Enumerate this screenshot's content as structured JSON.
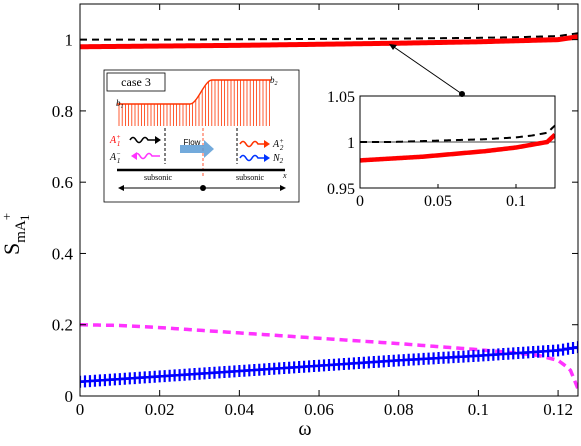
{
  "chart_data": {
    "type": "line",
    "xlabel": "ω",
    "ylabel": {
      "base": "S",
      "sub1": "mA",
      "sup": "+",
      "sub2": "1"
    },
    "xlim": [
      0,
      0.125
    ],
    "ylim": [
      0,
      1.1
    ],
    "xticks": [
      0,
      0.02,
      0.04,
      0.06,
      0.08,
      0.1,
      0.12
    ],
    "xtick_labels": [
      "0",
      "0.02",
      "0.04",
      "0.06",
      "0.08",
      "0.1",
      "0.12"
    ],
    "yticks": [
      0,
      0.2,
      0.4,
      0.6,
      0.8,
      1
    ],
    "ytick_labels": [
      "0",
      "0.2",
      "0.4",
      "0.6",
      "0.8",
      "1"
    ],
    "grid": false,
    "series": [
      {
        "style": "dashed",
        "color": "#000000",
        "x": [
          0,
          0.02,
          0.04,
          0.06,
          0.08,
          0.1,
          0.11,
          0.12,
          0.125
        ],
        "y": [
          1.0,
          1.0,
          1.001,
          1.002,
          1.003,
          1.005,
          1.007,
          1.01,
          1.018
        ]
      },
      {
        "style": "solid-thick",
        "color": "#ff0000",
        "x": [
          0,
          0.02,
          0.04,
          0.06,
          0.08,
          0.1,
          0.11,
          0.12,
          0.125
        ],
        "y": [
          0.98,
          0.982,
          0.984,
          0.987,
          0.99,
          0.994,
          0.997,
          1.0,
          1.008
        ]
      },
      {
        "style": "dashed-thick",
        "color": "#ff33ff",
        "x": [
          0,
          0.01,
          0.02,
          0.04,
          0.06,
          0.08,
          0.1,
          0.11,
          0.115,
          0.12,
          0.123,
          0.125
        ],
        "y": [
          0.2,
          0.198,
          0.192,
          0.177,
          0.162,
          0.147,
          0.13,
          0.12,
          0.114,
          0.1,
          0.075,
          0.02
        ]
      },
      {
        "style": "solid-plus",
        "color": "#0000ff",
        "x": [
          0,
          0.02,
          0.04,
          0.06,
          0.08,
          0.1,
          0.12,
          0.125
        ],
        "y": [
          0.04,
          0.055,
          0.07,
          0.085,
          0.1,
          0.113,
          0.128,
          0.137
        ]
      }
    ],
    "inset": {
      "xlim": [
        0,
        0.125
      ],
      "ylim": [
        0.95,
        1.05
      ],
      "xticks": [
        0,
        0.05,
        0.1
      ],
      "xtick_labels": [
        "0",
        "0.05",
        "0.1"
      ],
      "yticks": [
        0.95,
        1,
        1.05
      ],
      "ytick_labels": [
        "0.95",
        "1",
        "1.05"
      ],
      "reference_line": 1.0
    }
  },
  "schematic": {
    "case_label": "case 3",
    "b1": "b",
    "b1_sub": "1",
    "b2": "b",
    "b2_sub": "2",
    "a1p": "A",
    "a1p_sup": "+",
    "a1p_sub": "1",
    "a1m": "A",
    "a1m_sup": "−",
    "a1m_sub": "1",
    "a2p": "A",
    "a2p_sup": "+",
    "a2p_sub": "2",
    "n2": "N",
    "n2_sub": "2",
    "flow": "Flow",
    "x": "x",
    "left_region": "subsonic",
    "right_region": "subsonic"
  },
  "colors": {
    "red": "#ff0000",
    "magenta": "#ff33ff",
    "blue": "#0000ff",
    "flow_arrow": "#5b9bd5"
  }
}
